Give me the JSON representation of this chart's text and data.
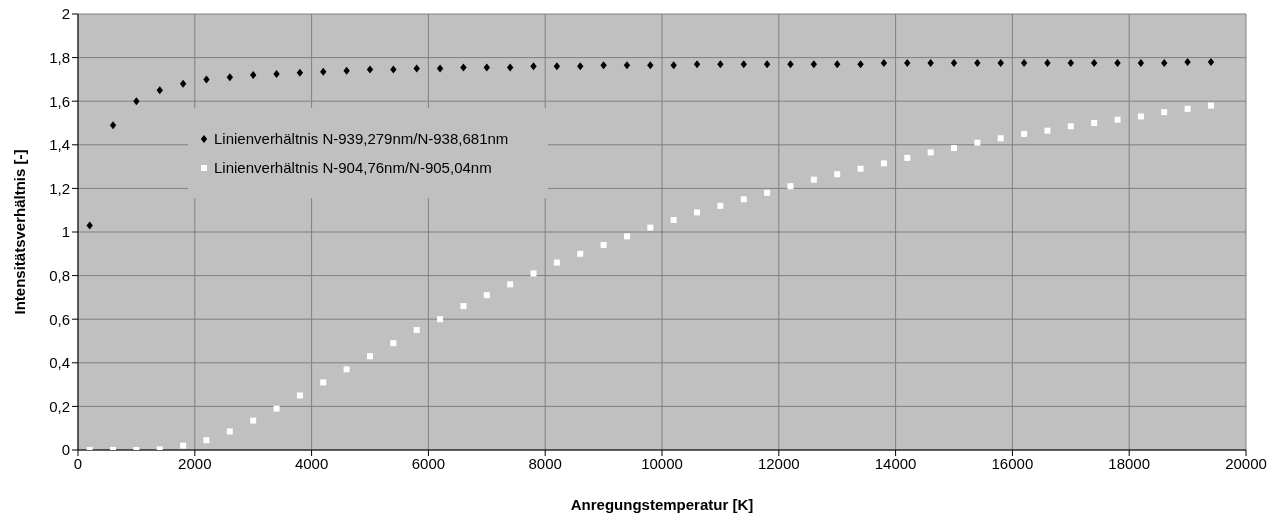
{
  "chart_data": {
    "type": "scatter",
    "xlabel": "Anregungstemperatur  [K]",
    "ylabel": "Intensitätsverhältnis  [-]",
    "x": [
      200,
      600,
      1000,
      1400,
      1800,
      2200,
      2600,
      3000,
      3400,
      3800,
      4200,
      4600,
      5000,
      5400,
      5800,
      6200,
      6600,
      7000,
      7400,
      7800,
      8200,
      8600,
      9000,
      9400,
      9800,
      10200,
      10600,
      11000,
      11400,
      11800,
      12200,
      12600,
      13000,
      13400,
      13800,
      14200,
      14600,
      15000,
      15400,
      15800,
      16200,
      16600,
      17000,
      17400,
      17800,
      18200,
      18600,
      19000,
      19400
    ],
    "series": [
      {
        "name": "Linienverhältnis N-939,279nm/N-938,681nm",
        "color": "#000000",
        "marker": "diamond",
        "values": [
          1.03,
          1.49,
          1.6,
          1.65,
          1.68,
          1.7,
          1.71,
          1.72,
          1.725,
          1.73,
          1.735,
          1.74,
          1.745,
          1.745,
          1.75,
          1.75,
          1.755,
          1.755,
          1.755,
          1.76,
          1.76,
          1.76,
          1.765,
          1.765,
          1.765,
          1.765,
          1.77,
          1.77,
          1.77,
          1.77,
          1.77,
          1.77,
          1.77,
          1.77,
          1.775,
          1.775,
          1.775,
          1.775,
          1.775,
          1.775,
          1.775,
          1.775,
          1.775,
          1.775,
          1.775,
          1.775,
          1.775,
          1.78,
          1.78
        ]
      },
      {
        "name": "Linienverhältnis N-904,76nm/N-905,04nm",
        "color": "#ffffff",
        "marker": "square",
        "values": [
          0,
          0,
          0,
          0.003,
          0.02,
          0.045,
          0.085,
          0.135,
          0.19,
          0.25,
          0.31,
          0.37,
          0.43,
          0.49,
          0.55,
          0.6,
          0.66,
          0.71,
          0.76,
          0.81,
          0.86,
          0.9,
          0.94,
          0.98,
          1.02,
          1.055,
          1.09,
          1.12,
          1.15,
          1.18,
          1.21,
          1.24,
          1.265,
          1.29,
          1.315,
          1.34,
          1.365,
          1.385,
          1.41,
          1.43,
          1.45,
          1.465,
          1.485,
          1.5,
          1.515,
          1.53,
          1.55,
          1.565,
          1.58
        ]
      }
    ],
    "xlim": [
      0,
      20000
    ],
    "xticks": [
      0,
      2000,
      4000,
      6000,
      8000,
      10000,
      12000,
      14000,
      16000,
      18000,
      20000
    ],
    "ylim": [
      0,
      2
    ],
    "yticks": [
      0,
      {
        "value": 0.2,
        "label": "0,2"
      },
      {
        "value": 0.4,
        "label": "0,4"
      },
      {
        "value": 0.6,
        "label": "0,6"
      },
      {
        "value": 0.8,
        "label": "0,8"
      },
      1,
      {
        "value": 1.2,
        "label": "1,2"
      },
      {
        "value": 1.4,
        "label": "1,4"
      },
      {
        "value": 1.6,
        "label": "1,6"
      },
      {
        "value": 1.8,
        "label": "1,8"
      },
      2
    ],
    "grid": true,
    "legend": "left"
  }
}
